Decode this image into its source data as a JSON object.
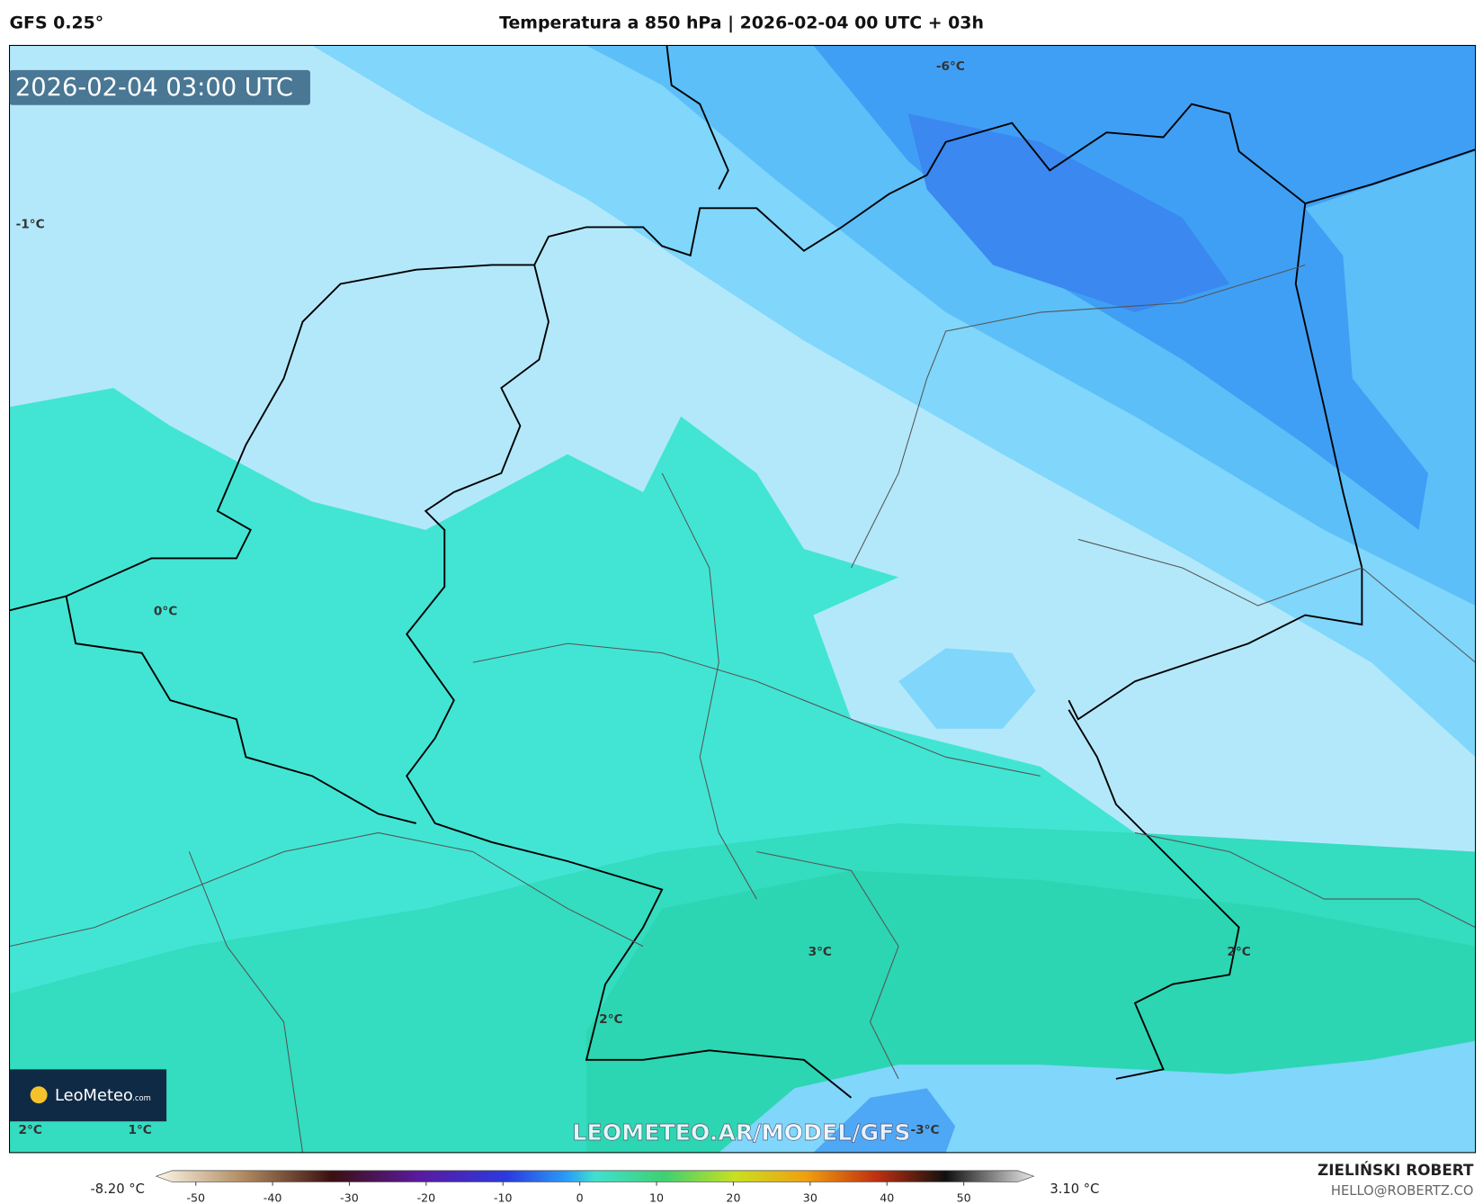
{
  "header": {
    "model": "GFS 0.25°",
    "title": "Temperatura a 850 hPa | 2026-02-04 00 UTC + 03h"
  },
  "map": {
    "valid_time": "2026-02-04 03:00 UTC",
    "contour_labels": [
      "-6°C",
      "-1°C",
      "0°C",
      "3°C",
      "2°C",
      "2°C",
      "2°C",
      "1°C",
      "-3°C"
    ],
    "watermark": "LEOMETEO.AR/MODEL/GFS",
    "logo": {
      "name": "LeoMeteo",
      "suffix": ".com"
    }
  },
  "colorbar": {
    "min_label": "-8.20 °C",
    "max_label": "3.10 °C",
    "ticks": [
      -50,
      -40,
      -30,
      -20,
      -10,
      0,
      10,
      20,
      30,
      40,
      50
    ]
  },
  "footer": {
    "author": "ZIELIŃSKI ROBERT",
    "email": "HELLO@ROBERTZ.CO"
  }
}
